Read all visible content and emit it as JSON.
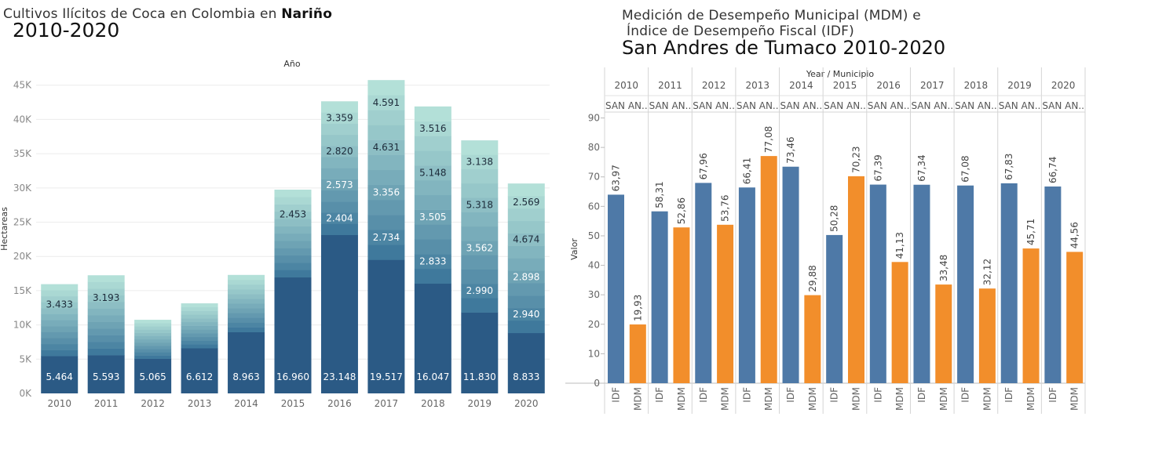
{
  "left": {
    "title_prefix": "Cultivos Ilícitos de Coca en Colombia en ",
    "title_region": "Nariño",
    "title_years": "2010-2020",
    "header": "Año",
    "ylabel": "Hectareas",
    "y_ticks": [
      "0K",
      "5K",
      "10K",
      "15K",
      "20K",
      "25K",
      "30K",
      "35K",
      "40K",
      "45K"
    ]
  },
  "right": {
    "title_line1": "Medición de Desempeño Municipal (MDM) e",
    "title_line2": "Índice de Desempeño Fiscal (IDF)",
    "title_line3": "San Andres de Tumaco 2010-2020",
    "header": "Year / Municipio",
    "ylabel": "Valor",
    "municipio_label": "SAN AN..",
    "y_ticks": [
      "0",
      "10",
      "20",
      "30",
      "40",
      "50",
      "60",
      "70",
      "80",
      "90"
    ]
  },
  "chart_data": [
    {
      "type": "bar",
      "subtype": "stacked",
      "title": "Cultivos Ilícitos de Coca en Colombia en Nariño 2010-2020",
      "header": "Año",
      "xlabel": "",
      "ylabel": "Hectareas",
      "ylim": [
        0,
        46000
      ],
      "grid": true,
      "categories": [
        "2010",
        "2011",
        "2012",
        "2013",
        "2014",
        "2015",
        "2016",
        "2017",
        "2018",
        "2019",
        "2020"
      ],
      "totals": [
        15950,
        17250,
        10750,
        13150,
        17300,
        29750,
        42650,
        45750,
        41900,
        36950,
        30650
      ],
      "bottom_labels": [
        "5.464",
        "5.593",
        "5.065",
        "6.612",
        "8.963",
        "16.960",
        "23.148",
        "19.517",
        "16.047",
        "11.830",
        "8.833"
      ],
      "segment_labels": [
        [
          "3.433"
        ],
        [
          "3.193"
        ],
        [],
        [],
        [],
        [
          "2.453"
        ],
        [
          "2.404",
          "2.573",
          "2.820",
          "3.359"
        ],
        [
          "2.734",
          "3.356",
          "4.631",
          "4.591"
        ],
        [
          "2.833",
          "3.505",
          "5.148",
          "3.516"
        ],
        [
          "2.990",
          "3.562",
          "5.318",
          "3.138"
        ],
        [
          "2.940",
          "2.898",
          "4.674",
          "2.569"
        ]
      ],
      "colors": {
        "dark": "#2b5a85",
        "light": "#b3e0d8"
      }
    },
    {
      "type": "bar",
      "subtype": "grouped",
      "title": "Medición de Desempeño Municipal (MDM) e Índice de Desempeño Fiscal (IDF) San Andres de Tumaco 2010-2020",
      "header": "Year / Municipio",
      "xlabel": "",
      "ylabel": "Valor",
      "ylim": [
        0,
        92
      ],
      "grid": false,
      "categories": [
        "2010",
        "2011",
        "2012",
        "2013",
        "2014",
        "2015",
        "2016",
        "2017",
        "2018",
        "2019",
        "2020"
      ],
      "subcategories": [
        "IDF",
        "MDM"
      ],
      "series": [
        {
          "name": "IDF",
          "values": [
            63.97,
            58.31,
            67.96,
            66.41,
            73.46,
            50.28,
            67.39,
            67.34,
            67.08,
            67.83,
            66.74
          ],
          "labels": [
            "63,97",
            "58,31",
            "67,96",
            "66,41",
            "73,46",
            "50,28",
            "67,39",
            "67,34",
            "67,08",
            "67,83",
            "66,74"
          ],
          "color": "#4e79a7"
        },
        {
          "name": "MDM",
          "values": [
            19.93,
            52.86,
            53.76,
            77.08,
            29.88,
            70.23,
            41.13,
            33.48,
            32.12,
            45.71,
            44.56
          ],
          "labels": [
            "19,93",
            "52,86",
            "53,76",
            "77,08",
            "29,88",
            "70,23",
            "41,13",
            "33,48",
            "32,12",
            "45,71",
            "44,56"
          ],
          "color": "#f28e2b"
        }
      ]
    }
  ]
}
